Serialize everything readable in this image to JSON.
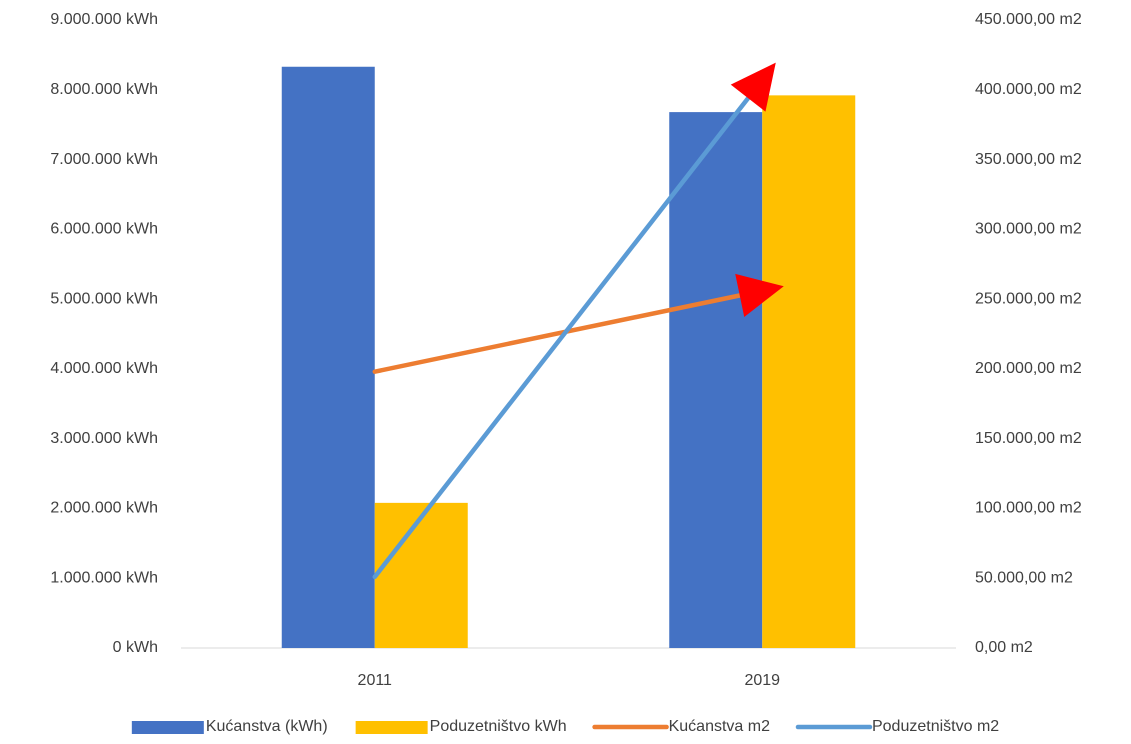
{
  "chart_data": {
    "type": "bar",
    "categories": [
      "2011",
      "2019"
    ],
    "series": [
      {
        "name": "Kućanstva (kWh)",
        "color": "#4472c4",
        "type": "bar",
        "values": [
          8330000,
          7680000
        ]
      },
      {
        "name": "Poduzetništvo kWh",
        "color": "#ffc000",
        "type": "bar",
        "values": [
          2080000,
          7920000
        ]
      },
      {
        "name": "Kućanstva m2",
        "color": "#ed7d31",
        "type": "line",
        "axis": "y2",
        "values": [
          198000,
          256000
        ]
      },
      {
        "name": "Poduzetništvo m2",
        "color": "#5b9bd5",
        "type": "line",
        "axis": "y2",
        "values": [
          51000,
          407000
        ]
      }
    ],
    "ylim": [
      0,
      9000000
    ],
    "yticks": [
      {
        "value": 0,
        "label": "0 kWh"
      },
      {
        "value": 1000000,
        "label": "1.000.000 kWh"
      },
      {
        "value": 2000000,
        "label": "2.000.000 kWh"
      },
      {
        "value": 3000000,
        "label": "3.000.000 kWh"
      },
      {
        "value": 4000000,
        "label": "4.000.000 kWh"
      },
      {
        "value": 5000000,
        "label": "5.000.000 kWh"
      },
      {
        "value": 6000000,
        "label": "6.000.000 kWh"
      },
      {
        "value": 7000000,
        "label": "7.000.000 kWh"
      },
      {
        "value": 8000000,
        "label": "8.000.000 kWh"
      },
      {
        "value": 9000000,
        "label": "9.000.000 kWh"
      }
    ],
    "y2lim": [
      0,
      450000
    ],
    "y2ticks": [
      {
        "value": 0,
        "label": "0,00 m2"
      },
      {
        "value": 50000,
        "label": "50.000,00 m2"
      },
      {
        "value": 100000,
        "label": "100.000,00 m2"
      },
      {
        "value": 150000,
        "label": "150.000,00 m2"
      },
      {
        "value": 200000,
        "label": "200.000,00 m2"
      },
      {
        "value": 250000,
        "label": "250.000,00 m2"
      },
      {
        "value": 300000,
        "label": "300.000,00 m2"
      },
      {
        "value": 350000,
        "label": "350.000,00 m2"
      },
      {
        "value": 400000,
        "label": "400.000,00 m2"
      },
      {
        "value": 450000,
        "label": "450.000,00 m2"
      }
    ],
    "grid": false,
    "legend": "bottom"
  }
}
